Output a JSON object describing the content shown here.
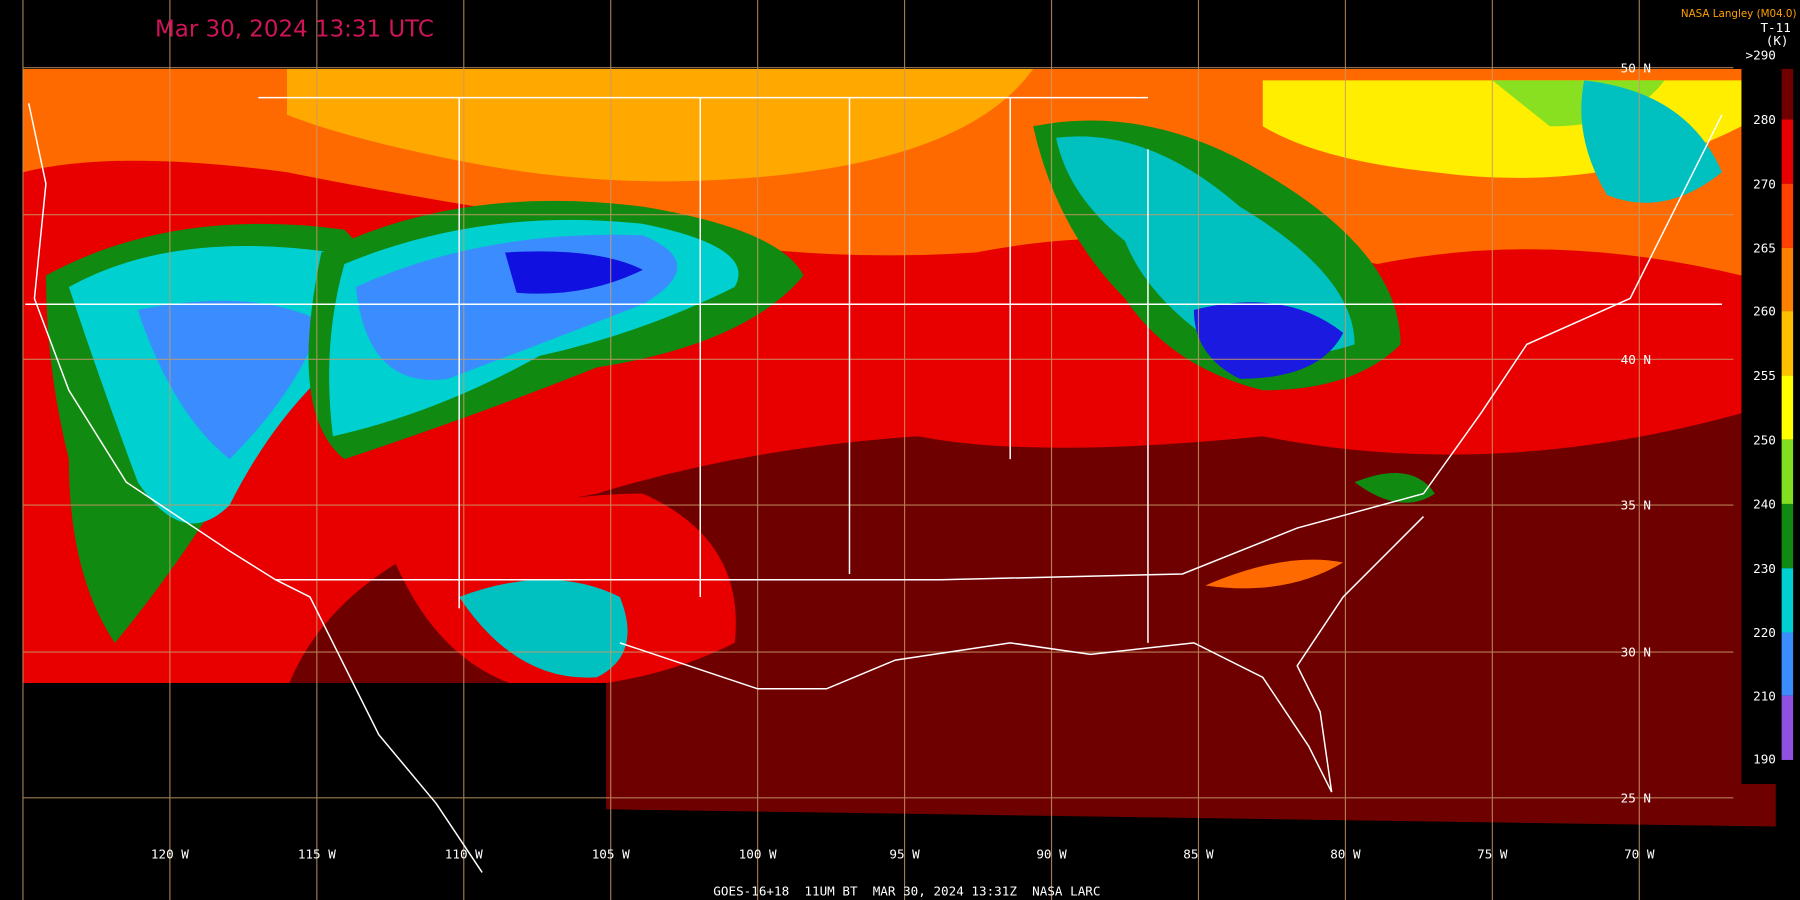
{
  "header": {
    "timestamp": "Mar 30, 2024 13:31 UTC",
    "source": "NASA Langley (M04.0)"
  },
  "colorbar": {
    "title": "T-11",
    "unit": "(K)",
    "labels": [
      ">290",
      "280",
      "270",
      "265",
      "260",
      "255",
      "250",
      "240",
      "230",
      "220",
      "210",
      "190"
    ]
  },
  "latitudes": [
    "50 N",
    "40 N",
    "35 N",
    "30 N",
    "25 N"
  ],
  "longitudes": [
    "120 W",
    "115 W",
    "110 W",
    "105 W",
    "100 W",
    "95 W",
    "90 W",
    "85 W",
    "80 W",
    "75 W",
    "70 W"
  ],
  "footer": "GOES-16+18  11UM BT  MAR 30, 2024 13:31Z  NASA LARC"
}
